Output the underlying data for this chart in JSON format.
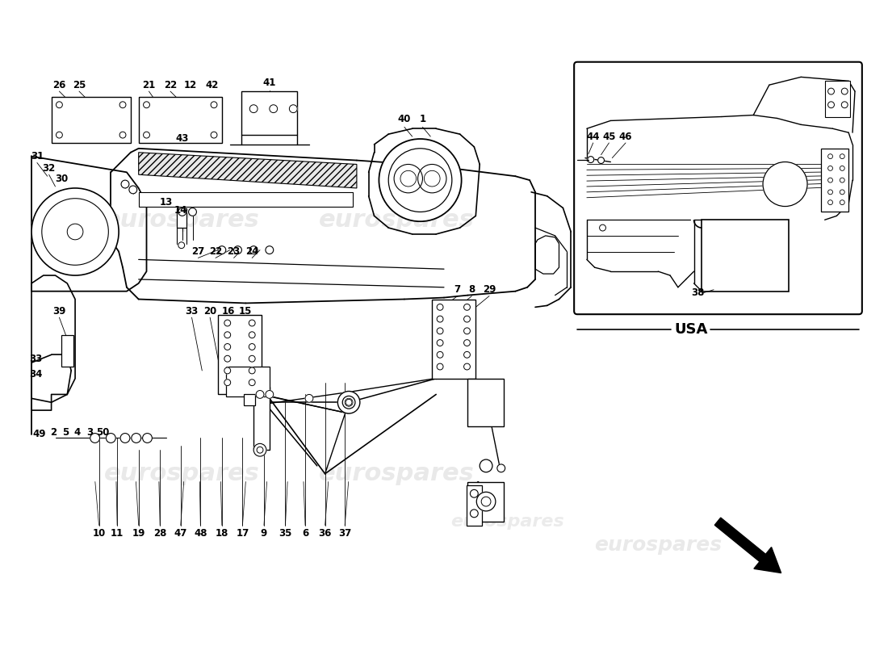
{
  "bg": "#ffffff",
  "lc": "#000000",
  "wc": "#cccccc",
  "fig_w": 11.0,
  "fig_h": 8.0,
  "dpi": 100,
  "usa_text": "USA",
  "watermark": "eurospares"
}
